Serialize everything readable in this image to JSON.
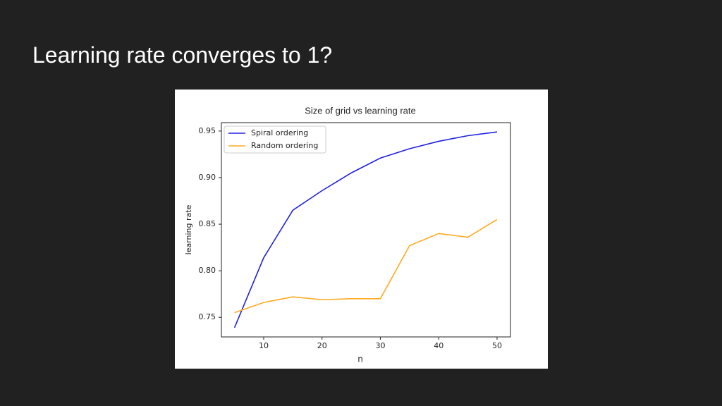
{
  "slide": {
    "title": "Learning rate converges to 1?"
  },
  "chart_data": {
    "type": "line",
    "title": "Size of grid vs learning rate",
    "x_label": "n",
    "y_label": "learning rate",
    "x": [
      5,
      10,
      15,
      20,
      25,
      30,
      35,
      40,
      45,
      50
    ],
    "series": [
      {
        "name": "Spiral ordering",
        "color": "#2020e0",
        "values": [
          0.739,
          0.814,
          0.865,
          0.886,
          0.905,
          0.921,
          0.931,
          0.939,
          0.945,
          0.949
        ]
      },
      {
        "name": "Random ordering",
        "color": "#ffaa22",
        "values": [
          0.755,
          0.766,
          0.772,
          0.769,
          0.77,
          0.77,
          0.827,
          0.84,
          0.836,
          0.855
        ]
      }
    ],
    "xlim": [
      2.75,
      52.3
    ],
    "ylim": [
      0.729,
      0.959
    ],
    "xticks": [
      10,
      20,
      30,
      40,
      50
    ],
    "yticks": [
      0.75,
      {
        "value": 0.8,
        "label": "0.80"
      },
      0.85,
      {
        "value": 0.9,
        "label": "0.90"
      },
      0.95
    ],
    "legend": "upper left"
  }
}
